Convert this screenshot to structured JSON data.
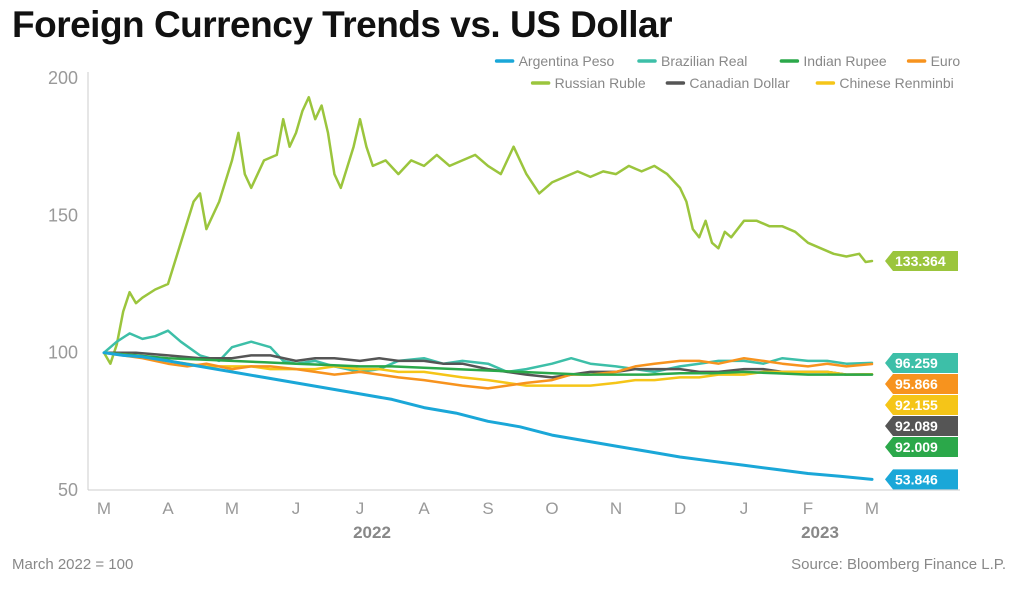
{
  "title": "Foreign Currency Trends vs. US Dollar",
  "footnote": "March 2022 = 100",
  "source": "Source: Bloomberg Finance L.P.",
  "chart_data": {
    "type": "line",
    "title": "Foreign Currency Trends vs. US Dollar",
    "ylim": [
      50,
      200
    ],
    "yticks": [
      50,
      100,
      150,
      200
    ],
    "grid": false,
    "legend": "top-right",
    "month_labels": [
      "M",
      "A",
      "M",
      "J",
      "J",
      "A",
      "S",
      "O",
      "N",
      "D",
      "J",
      "F",
      "M"
    ],
    "year_labels": [
      {
        "label": "2022",
        "at_month_index": 4.5
      },
      {
        "label": "2023",
        "at_month_index": 11.5
      }
    ],
    "x_range": [
      -0.3,
      12.3
    ],
    "series": [
      {
        "name": "Argentina Peso",
        "color": "#1aa7d8",
        "end_label": "53.846",
        "points": [
          [
            0,
            100
          ],
          [
            0.3,
            99
          ],
          [
            0.6,
            98.5
          ],
          [
            1,
            97
          ],
          [
            1.5,
            95
          ],
          [
            2,
            93
          ],
          [
            2.5,
            91
          ],
          [
            3,
            89
          ],
          [
            3.5,
            87
          ],
          [
            4,
            85
          ],
          [
            4.5,
            83
          ],
          [
            5,
            80
          ],
          [
            5.5,
            78
          ],
          [
            6,
            75
          ],
          [
            6.5,
            73
          ],
          [
            7,
            70
          ],
          [
            7.5,
            68
          ],
          [
            8,
            66
          ],
          [
            8.5,
            64
          ],
          [
            9,
            62
          ],
          [
            9.5,
            60.5
          ],
          [
            10,
            59
          ],
          [
            10.5,
            57.5
          ],
          [
            11,
            56
          ],
          [
            11.5,
            55
          ],
          [
            12,
            53.846
          ]
        ]
      },
      {
        "name": "Brazilian Real",
        "color": "#3dbfa8",
        "end_label": "96.259",
        "points": [
          [
            0,
            100
          ],
          [
            0.2,
            104
          ],
          [
            0.4,
            107
          ],
          [
            0.6,
            105
          ],
          [
            0.8,
            106
          ],
          [
            1,
            108
          ],
          [
            1.2,
            104
          ],
          [
            1.5,
            99
          ],
          [
            1.8,
            97
          ],
          [
            2,
            102
          ],
          [
            2.3,
            104
          ],
          [
            2.6,
            102
          ],
          [
            2.8,
            97
          ],
          [
            3,
            96
          ],
          [
            3.3,
            97
          ],
          [
            3.6,
            95
          ],
          [
            4,
            93
          ],
          [
            4.3,
            94
          ],
          [
            4.6,
            97
          ],
          [
            5,
            98
          ],
          [
            5.3,
            96
          ],
          [
            5.6,
            97
          ],
          [
            6,
            96
          ],
          [
            6.3,
            93
          ],
          [
            6.6,
            94
          ],
          [
            7,
            96
          ],
          [
            7.3,
            98
          ],
          [
            7.6,
            96
          ],
          [
            8,
            95
          ],
          [
            8.3,
            94
          ],
          [
            8.6,
            93
          ],
          [
            9,
            95
          ],
          [
            9.3,
            96
          ],
          [
            9.6,
            97
          ],
          [
            10,
            97
          ],
          [
            10.3,
            96
          ],
          [
            10.6,
            98
          ],
          [
            11,
            97
          ],
          [
            11.3,
            97
          ],
          [
            11.6,
            96
          ],
          [
            12,
            96.259
          ]
        ]
      },
      {
        "name": "Indian Rupee",
        "color": "#2ba84a",
        "end_label": "92.009",
        "points": [
          [
            0,
            100
          ],
          [
            0.5,
            99
          ],
          [
            1,
            98
          ],
          [
            1.5,
            97.5
          ],
          [
            2,
            97
          ],
          [
            2.5,
            96.5
          ],
          [
            3,
            96
          ],
          [
            3.5,
            95.5
          ],
          [
            4,
            95
          ],
          [
            4.5,
            95
          ],
          [
            5,
            94.5
          ],
          [
            5.5,
            94
          ],
          [
            6,
            93.5
          ],
          [
            6.5,
            93
          ],
          [
            7,
            92.5
          ],
          [
            7.5,
            92
          ],
          [
            8,
            92
          ],
          [
            8.5,
            92
          ],
          [
            9,
            92.5
          ],
          [
            9.5,
            92.5
          ],
          [
            10,
            93
          ],
          [
            10.5,
            92.5
          ],
          [
            11,
            92
          ],
          [
            11.5,
            92
          ],
          [
            12,
            92.009
          ]
        ]
      },
      {
        "name": "Euro",
        "color": "#f7931e",
        "end_label": "95.866",
        "points": [
          [
            0,
            100
          ],
          [
            0.3,
            99
          ],
          [
            0.6,
            98
          ],
          [
            1,
            96
          ],
          [
            1.3,
            95
          ],
          [
            1.6,
            96
          ],
          [
            2,
            94
          ],
          [
            2.3,
            95
          ],
          [
            2.6,
            95
          ],
          [
            3,
            94
          ],
          [
            3.3,
            93
          ],
          [
            3.6,
            92
          ],
          [
            4,
            93
          ],
          [
            4.3,
            92
          ],
          [
            4.6,
            91
          ],
          [
            5,
            90
          ],
          [
            5.3,
            89
          ],
          [
            5.6,
            88
          ],
          [
            6,
            87
          ],
          [
            6.3,
            88
          ],
          [
            6.6,
            89
          ],
          [
            7,
            90
          ],
          [
            7.3,
            92
          ],
          [
            7.6,
            92
          ],
          [
            8,
            93
          ],
          [
            8.3,
            95
          ],
          [
            8.6,
            96
          ],
          [
            9,
            97
          ],
          [
            9.3,
            97
          ],
          [
            9.6,
            96
          ],
          [
            10,
            98
          ],
          [
            10.3,
            97
          ],
          [
            10.6,
            96
          ],
          [
            11,
            95
          ],
          [
            11.3,
            96
          ],
          [
            11.6,
            95
          ],
          [
            12,
            95.866
          ]
        ]
      },
      {
        "name": "Russian Ruble",
        "color": "#9bc53d",
        "end_label": "133.364",
        "points": [
          [
            0,
            100
          ],
          [
            0.1,
            96
          ],
          [
            0.2,
            103
          ],
          [
            0.3,
            115
          ],
          [
            0.4,
            122
          ],
          [
            0.5,
            118
          ],
          [
            0.6,
            120
          ],
          [
            0.8,
            123
          ],
          [
            1,
            125
          ],
          [
            1.2,
            140
          ],
          [
            1.4,
            155
          ],
          [
            1.5,
            158
          ],
          [
            1.6,
            145
          ],
          [
            1.8,
            155
          ],
          [
            2,
            170
          ],
          [
            2.1,
            180
          ],
          [
            2.2,
            165
          ],
          [
            2.3,
            160
          ],
          [
            2.5,
            170
          ],
          [
            2.7,
            172
          ],
          [
            2.8,
            185
          ],
          [
            2.9,
            175
          ],
          [
            3,
            180
          ],
          [
            3.1,
            188
          ],
          [
            3.2,
            193
          ],
          [
            3.3,
            185
          ],
          [
            3.4,
            190
          ],
          [
            3.5,
            180
          ],
          [
            3.6,
            165
          ],
          [
            3.7,
            160
          ],
          [
            3.9,
            175
          ],
          [
            4.0,
            185
          ],
          [
            4.1,
            175
          ],
          [
            4.2,
            168
          ],
          [
            4.4,
            170
          ],
          [
            4.6,
            165
          ],
          [
            4.8,
            170
          ],
          [
            5,
            168
          ],
          [
            5.2,
            172
          ],
          [
            5.4,
            168
          ],
          [
            5.6,
            170
          ],
          [
            5.8,
            172
          ],
          [
            6,
            168
          ],
          [
            6.2,
            165
          ],
          [
            6.4,
            175
          ],
          [
            6.6,
            165
          ],
          [
            6.8,
            158
          ],
          [
            7,
            162
          ],
          [
            7.2,
            164
          ],
          [
            7.4,
            166
          ],
          [
            7.6,
            164
          ],
          [
            7.8,
            166
          ],
          [
            8,
            165
          ],
          [
            8.2,
            168
          ],
          [
            8.4,
            166
          ],
          [
            8.6,
            168
          ],
          [
            8.8,
            165
          ],
          [
            9,
            160
          ],
          [
            9.1,
            155
          ],
          [
            9.2,
            145
          ],
          [
            9.3,
            142
          ],
          [
            9.4,
            148
          ],
          [
            9.5,
            140
          ],
          [
            9.6,
            138
          ],
          [
            9.7,
            144
          ],
          [
            9.8,
            142
          ],
          [
            10,
            148
          ],
          [
            10.2,
            148
          ],
          [
            10.4,
            146
          ],
          [
            10.6,
            146
          ],
          [
            10.8,
            144
          ],
          [
            11,
            140
          ],
          [
            11.2,
            138
          ],
          [
            11.4,
            136
          ],
          [
            11.6,
            135
          ],
          [
            11.8,
            136
          ],
          [
            11.9,
            133
          ],
          [
            12,
            133.364
          ]
        ]
      },
      {
        "name": "Canadian Dollar",
        "color": "#555555",
        "end_label": "92.089",
        "points": [
          [
            0,
            100
          ],
          [
            0.5,
            100
          ],
          [
            1,
            99
          ],
          [
            1.5,
            98
          ],
          [
            2,
            98
          ],
          [
            2.3,
            99
          ],
          [
            2.6,
            99
          ],
          [
            3,
            97
          ],
          [
            3.3,
            98
          ],
          [
            3.6,
            98
          ],
          [
            4,
            97
          ],
          [
            4.3,
            98
          ],
          [
            4.6,
            97
          ],
          [
            5,
            97
          ],
          [
            5.3,
            96
          ],
          [
            5.6,
            96
          ],
          [
            6,
            94
          ],
          [
            6.3,
            93
          ],
          [
            6.6,
            92
          ],
          [
            7,
            91
          ],
          [
            7.3,
            92
          ],
          [
            7.6,
            93
          ],
          [
            8,
            93
          ],
          [
            8.3,
            94
          ],
          [
            8.6,
            94
          ],
          [
            9,
            94
          ],
          [
            9.3,
            93
          ],
          [
            9.6,
            93
          ],
          [
            10,
            94
          ],
          [
            10.3,
            94
          ],
          [
            10.6,
            93
          ],
          [
            11,
            93
          ],
          [
            11.3,
            93
          ],
          [
            11.6,
            92
          ],
          [
            12,
            92.089
          ]
        ]
      },
      {
        "name": "Chinese Renminbi",
        "color": "#f5c518",
        "end_label": "92.155",
        "points": [
          [
            0,
            100
          ],
          [
            0.5,
            99
          ],
          [
            1,
            97
          ],
          [
            1.3,
            96
          ],
          [
            1.6,
            95
          ],
          [
            2,
            95
          ],
          [
            2.3,
            95
          ],
          [
            2.6,
            94
          ],
          [
            3,
            94
          ],
          [
            3.3,
            94
          ],
          [
            3.6,
            95
          ],
          [
            4,
            94
          ],
          [
            4.3,
            94
          ],
          [
            4.6,
            93
          ],
          [
            5,
            93
          ],
          [
            5.3,
            92
          ],
          [
            5.6,
            91
          ],
          [
            6,
            90
          ],
          [
            6.3,
            89
          ],
          [
            6.6,
            88
          ],
          [
            7,
            88
          ],
          [
            7.3,
            88
          ],
          [
            7.6,
            88
          ],
          [
            8,
            89
          ],
          [
            8.3,
            90
          ],
          [
            8.6,
            90
          ],
          [
            9,
            91
          ],
          [
            9.3,
            91
          ],
          [
            9.6,
            92
          ],
          [
            10,
            92
          ],
          [
            10.3,
            93
          ],
          [
            10.6,
            93
          ],
          [
            11,
            93
          ],
          [
            11.3,
            93
          ],
          [
            11.6,
            92
          ],
          [
            12,
            92.155
          ]
        ]
      }
    ]
  }
}
